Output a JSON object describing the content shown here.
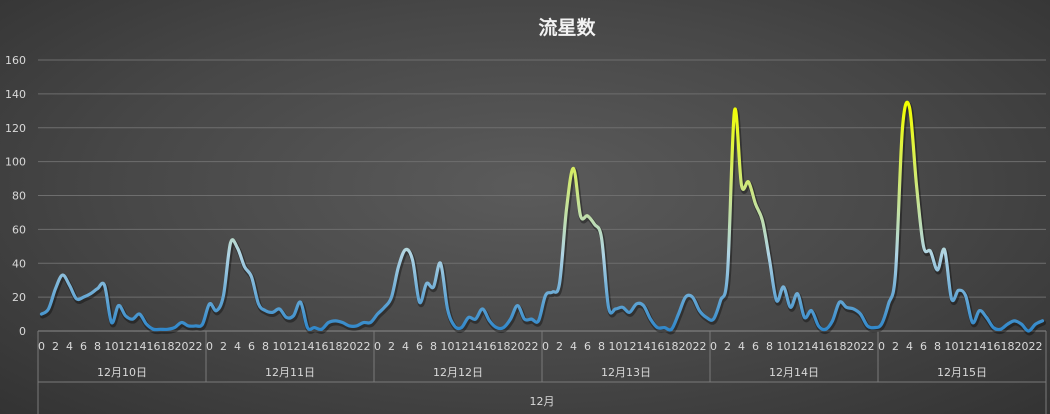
{
  "chart_data": {
    "type": "line",
    "title": "流星数",
    "ylim": [
      0,
      160
    ],
    "yticks": [
      0,
      20,
      40,
      60,
      80,
      100,
      120,
      140,
      160
    ],
    "grid": true,
    "x_hour_labels": [
      "0",
      "2",
      "4",
      "6",
      "8",
      "10",
      "12",
      "14",
      "16",
      "18",
      "20",
      "22"
    ],
    "days": [
      "12月10日",
      "12月11日",
      "12月12日",
      "12月13日",
      "12月14日",
      "12月15日"
    ],
    "month": "12月",
    "line_colors": {
      "low": "#2e86c9",
      "mid": "#b0d4e3",
      "high": "#f2ff00"
    },
    "series": [
      {
        "values": [
          10,
          13,
          25,
          33,
          27,
          19,
          20,
          22,
          25,
          27,
          5,
          15,
          9,
          7,
          10,
          4,
          1,
          1,
          1,
          2,
          5,
          3,
          3,
          4,
          16,
          12,
          21,
          52,
          49,
          38,
          32,
          16,
          12,
          11,
          13,
          8,
          9,
          17,
          2,
          2,
          1,
          5,
          6,
          5,
          3,
          3,
          5,
          5,
          10,
          14,
          20,
          38,
          48,
          42,
          17,
          28,
          26,
          40,
          13,
          3,
          2,
          8,
          7,
          13,
          6,
          2,
          2,
          7,
          15,
          7,
          7,
          6,
          21,
          23,
          28,
          72,
          96,
          68,
          68,
          63,
          55,
          14,
          13,
          14,
          11,
          16,
          15,
          7,
          2,
          2,
          1,
          10,
          20,
          20,
          12,
          8,
          7,
          18,
          34,
          130,
          86,
          88,
          75,
          65,
          42,
          18,
          26,
          14,
          22,
          8,
          12,
          3,
          1,
          6,
          17,
          14,
          13,
          10,
          3,
          2,
          4,
          16,
          34,
          120,
          132,
          86,
          50,
          47,
          36,
          48,
          19,
          24,
          21,
          5,
          12,
          8,
          2,
          1,
          4,
          6,
          4,
          0,
          4,
          6
        ]
      }
    ]
  }
}
